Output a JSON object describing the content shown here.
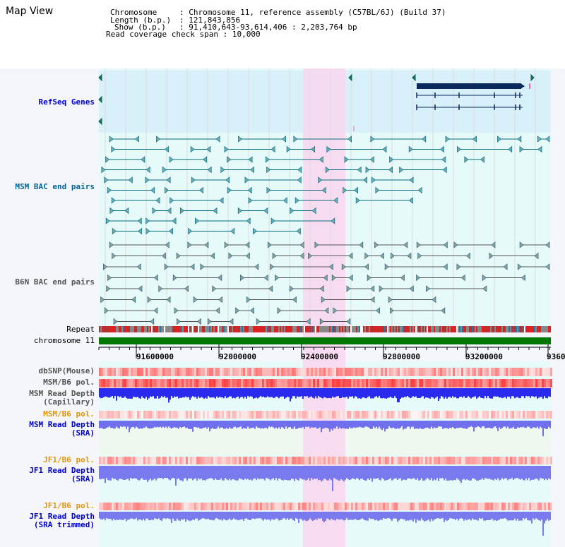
{
  "view_title": "Map View",
  "info": {
    "chromosome_key": "Chromosome",
    "chromosome_val": "Chromosome 11, reference assembly (C57BL/6J) (Build 37)",
    "length_key": "Length (b.p.)",
    "length_val": "121,843,856",
    "show_key": "Show (b.p.)",
    "show_val": "91,410,643-93,614,406 : 2,203,764 bp",
    "coverage_key": "Read coverage check span",
    "coverage_val": "10,000"
  },
  "tracks": {
    "refseq": "RefSeq Genes",
    "msm_bac": "MSM BAC end pairs",
    "b6n_bac": "B6N BAC end pairs",
    "repeat": "Repeat",
    "chromosome": "chromosome 11",
    "dbsnp": "dbSNP(Mouse)",
    "msm_b6_pol_1": "MSM/B6 pol.",
    "msm_depth_cap": "MSM Read Depth\n(Capillary)",
    "msm_b6_pol_2": "MSM/B6 pol.",
    "msm_depth_sra": "MSM Read Depth\n(SRA)",
    "jf1_b6_pol_1": "JF1/B6 pol.",
    "jf1_depth_sra": "JF1 Read Depth\n(SRA)",
    "jf1_b6_pol_2": "JF1/B6 pol.",
    "jf1_depth_trim": "JF1 Read Depth\n(SRA trimmed)"
  },
  "axis_ticks": [
    "91600000",
    "92000000",
    "92400000",
    "92800000",
    "93200000",
    "9360"
  ],
  "colors": {
    "refseq_label": "#0000cc",
    "msm_label": "#006699",
    "b6n_label": "#555555",
    "pol_label": "#e69500",
    "depth_label": "#0000cc",
    "highlight": "#f8d8f0",
    "chromosome_bar": "#007700"
  }
}
